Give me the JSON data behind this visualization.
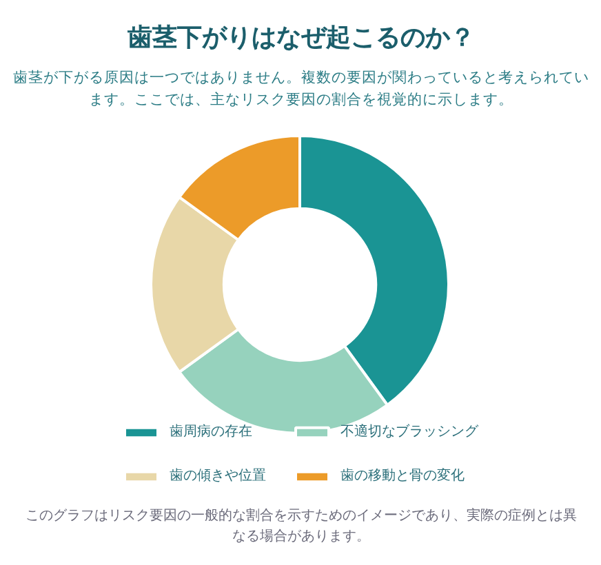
{
  "chart_data": {
    "type": "donut",
    "title": "歯茎下がりはなぜ起こるのか？",
    "subtitle": "歯茎が下がる原因は一つではありません。複数の要因が関わっていると考えられています。ここでは、主なリスク要因の割合を視覚的に示します。",
    "categories": [
      "歯周病の存在",
      "不適切なブラッシング",
      "歯の傾きや位置",
      "歯の移動と骨の変化"
    ],
    "values": [
      40,
      25,
      20,
      15
    ],
    "colors": [
      "#1a9494",
      "#96d2bd",
      "#e8d7a8",
      "#ec9b29"
    ],
    "legend": "bottom",
    "annotations": [
      "このグラフはリスク要因の一般的な割合を示すためのイメージであり、実際の症例とは異なる場合があります。"
    ]
  }
}
